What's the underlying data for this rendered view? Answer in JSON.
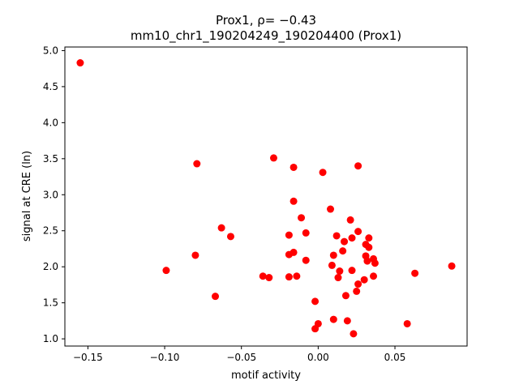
{
  "chart_data": {
    "type": "scatter",
    "title_line1": "Prox1, ρ= −0.43",
    "title_line2": "mm10_chr1_190204249_190204400 (Prox1)",
    "xlabel": "motif activity",
    "ylabel": "signal at CRE (ln)",
    "xlim": [
      -0.165,
      0.097
    ],
    "ylim": [
      0.9,
      5.05
    ],
    "xticks": [
      -0.15,
      -0.1,
      -0.05,
      0.0,
      0.05
    ],
    "xtick_labels": [
      "−0.15",
      "−0.10",
      "−0.05",
      "0.00",
      "0.05"
    ],
    "yticks": [
      1.0,
      1.5,
      2.0,
      2.5,
      3.0,
      3.5,
      4.0,
      4.5,
      5.0
    ],
    "ytick_labels": [
      "1.0",
      "1.5",
      "2.0",
      "2.5",
      "3.0",
      "3.5",
      "4.0",
      "4.5",
      "5.0"
    ],
    "grid": false,
    "marker_color": "#ff0000",
    "points": [
      {
        "x": -0.155,
        "y": 4.83
      },
      {
        "x": -0.079,
        "y": 3.43
      },
      {
        "x": -0.029,
        "y": 3.51
      },
      {
        "x": -0.016,
        "y": 3.38
      },
      {
        "x": 0.003,
        "y": 3.31
      },
      {
        "x": 0.026,
        "y": 3.4
      },
      {
        "x": -0.016,
        "y": 2.91
      },
      {
        "x": 0.008,
        "y": 2.8
      },
      {
        "x": -0.011,
        "y": 2.68
      },
      {
        "x": 0.021,
        "y": 2.65
      },
      {
        "x": -0.063,
        "y": 2.54
      },
      {
        "x": -0.057,
        "y": 2.42
      },
      {
        "x": -0.008,
        "y": 2.47
      },
      {
        "x": -0.019,
        "y": 2.44
      },
      {
        "x": 0.012,
        "y": 2.43
      },
      {
        "x": 0.026,
        "y": 2.49
      },
      {
        "x": 0.022,
        "y": 2.4
      },
      {
        "x": 0.017,
        "y": 2.35
      },
      {
        "x": 0.033,
        "y": 2.4
      },
      {
        "x": 0.031,
        "y": 2.31
      },
      {
        "x": 0.033,
        "y": 2.27
      },
      {
        "x": 0.016,
        "y": 2.22
      },
      {
        "x": -0.08,
        "y": 2.16
      },
      {
        "x": -0.019,
        "y": 2.17
      },
      {
        "x": -0.016,
        "y": 2.2
      },
      {
        "x": 0.01,
        "y": 2.16
      },
      {
        "x": 0.031,
        "y": 2.15
      },
      {
        "x": 0.036,
        "y": 2.11
      },
      {
        "x": 0.032,
        "y": 2.08
      },
      {
        "x": -0.008,
        "y": 2.09
      },
      {
        "x": 0.009,
        "y": 2.02
      },
      {
        "x": 0.037,
        "y": 2.05
      },
      {
        "x": 0.087,
        "y": 2.01
      },
      {
        "x": -0.099,
        "y": 1.95
      },
      {
        "x": 0.014,
        "y": 1.94
      },
      {
        "x": 0.022,
        "y": 1.95
      },
      {
        "x": 0.063,
        "y": 1.91
      },
      {
        "x": -0.036,
        "y": 1.87
      },
      {
        "x": -0.032,
        "y": 1.85
      },
      {
        "x": -0.019,
        "y": 1.86
      },
      {
        "x": -0.014,
        "y": 1.87
      },
      {
        "x": 0.013,
        "y": 1.85
      },
      {
        "x": 0.036,
        "y": 1.87
      },
      {
        "x": 0.03,
        "y": 1.82
      },
      {
        "x": 0.026,
        "y": 1.76
      },
      {
        "x": 0.025,
        "y": 1.66
      },
      {
        "x": 0.018,
        "y": 1.6
      },
      {
        "x": -0.067,
        "y": 1.59
      },
      {
        "x": -0.002,
        "y": 1.52
      },
      {
        "x": 0.01,
        "y": 1.27
      },
      {
        "x": 0.019,
        "y": 1.25
      },
      {
        "x": 0.0,
        "y": 1.21
      },
      {
        "x": -0.002,
        "y": 1.14
      },
      {
        "x": 0.058,
        "y": 1.21
      },
      {
        "x": 0.023,
        "y": 1.07
      }
    ]
  }
}
